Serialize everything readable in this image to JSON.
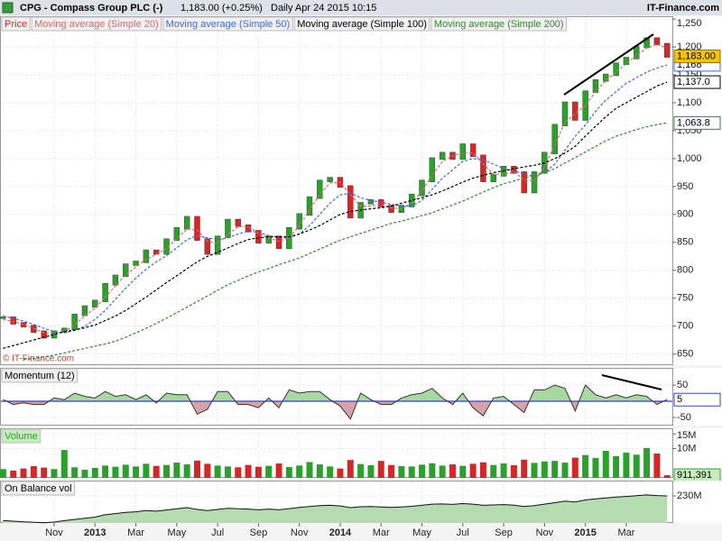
{
  "header": {
    "title": "CPG - Compass Group PLC (-)",
    "quote": "1,183.00 (+0.25%)",
    "period": "Daily  Apr 24 2015 10:15",
    "site": "IT-Finance.com",
    "watermark": "© IT-Finance.com"
  },
  "chart_data": [
    {
      "type": "line",
      "grid": true,
      "up_color": "#2ca02c",
      "down_color": "#d62728",
      "categories": [
        null,
        null,
        null,
        null,
        null,
        "Nov",
        null,
        null,
        null,
        "2013",
        null,
        null,
        null,
        "Mar",
        null,
        null,
        null,
        "May",
        null,
        null,
        null,
        "Jul",
        null,
        null,
        null,
        "Sep",
        null,
        null,
        null,
        "Nov",
        null,
        null,
        null,
        "2014",
        null,
        null,
        null,
        "Mar",
        null,
        null,
        null,
        "May",
        null,
        null,
        null,
        "Jul",
        null,
        null,
        null,
        "Sep",
        null,
        null,
        null,
        "Nov",
        null,
        null,
        null,
        "2015",
        null,
        null,
        null,
        "Mar",
        null,
        null,
        null,
        null
      ],
      "ylim": [
        630,
        1255
      ],
      "yticks": [
        650,
        700,
        750,
        800,
        850,
        900,
        950,
        {
          "value": 1000,
          "label": "1,000"
        },
        {
          "value": 1050,
          "label": "1,050"
        },
        {
          "value": 1100,
          "label": "1,100"
        },
        {
          "value": 1150,
          "label": "1,150"
        },
        {
          "value": 1200,
          "label": "1,200"
        },
        {
          "value": 1250,
          "label": "1,250"
        }
      ],
      "series": [
        {
          "name": "Price",
          "style": "candle",
          "color": "#d62728",
          "last_label": "1,183.00",
          "label_fill": "#f7c600",
          "label_stroke": "#8a6d00",
          "values": [
            715,
            705,
            700,
            690,
            680,
            690,
            695,
            720,
            735,
            745,
            775,
            790,
            810,
            815,
            835,
            830,
            855,
            875,
            895,
            855,
            830,
            860,
            890,
            880,
            870,
            850,
            860,
            840,
            875,
            900,
            930,
            960,
            965,
            950,
            895,
            920,
            925,
            915,
            905,
            915,
            935,
            960,
            1000,
            1010,
            1000,
            1025,
            1005,
            960,
            970,
            985,
            975,
            940,
            975,
            1010,
            1060,
            1100,
            1070,
            1120,
            1140,
            1150,
            1170,
            1180,
            1200,
            1215,
            1205,
            1183
          ]
        },
        {
          "name": "Moving average (Simple 20)",
          "style": "dashed",
          "color": "#e06666",
          "values": [
            712,
            708,
            703,
            696,
            688,
            686,
            690,
            702,
            718,
            732,
            752,
            772,
            792,
            806,
            820,
            828,
            840,
            856,
            874,
            872,
            852,
            848,
            864,
            878,
            878,
            866,
            858,
            852,
            858,
            880,
            908,
            936,
            956,
            958,
            935,
            915,
            915,
            918,
            912,
            910,
            920,
            942,
            970,
            995,
            1005,
            1010,
            1010,
            990,
            972,
            972,
            976,
            962,
            960,
            985,
            1025,
            1065,
            1080,
            1095,
            1120,
            1140,
            1155,
            1170,
            1185,
            1198,
            1205,
            1198
          ]
        },
        {
          "name": "Moving average (Simple 50)",
          "style": "dashed",
          "color": "#4169e1",
          "last_label": "1,168",
          "label_fill": "#ffffff",
          "label_stroke": "#4169e1",
          "values": [
            718,
            714,
            709,
            703,
            696,
            690,
            688,
            692,
            700,
            712,
            728,
            748,
            768,
            786,
            802,
            815,
            826,
            840,
            855,
            862,
            858,
            855,
            858,
            865,
            870,
            868,
            862,
            858,
            858,
            865,
            880,
            900,
            920,
            935,
            938,
            930,
            925,
            922,
            918,
            915,
            915,
            925,
            945,
            965,
            980,
            995,
            1000,
            998,
            990,
            982,
            978,
            972,
            968,
            975,
            990,
            1015,
            1040,
            1060,
            1085,
            1105,
            1120,
            1135,
            1145,
            1155,
            1162,
            1168
          ]
        },
        {
          "name": "Moving average (Simple 100)",
          "style": "dashed",
          "color": "#000000",
          "last_label": "1,137.0",
          "label_fill": "#ffffff",
          "label_stroke": "#000000",
          "values": [
            660,
            665,
            670,
            675,
            680,
            685,
            690,
            693,
            697,
            702,
            710,
            718,
            728,
            740,
            752,
            765,
            778,
            790,
            803,
            815,
            825,
            832,
            840,
            848,
            855,
            858,
            860,
            860,
            860,
            865,
            872,
            880,
            890,
            900,
            905,
            908,
            910,
            912,
            915,
            920,
            925,
            930,
            935,
            942,
            950,
            958,
            965,
            970,
            975,
            978,
            982,
            985,
            988,
            992,
            1000,
            1010,
            1022,
            1040,
            1058,
            1075,
            1090,
            1100,
            1110,
            1120,
            1130,
            1137.0
          ]
        },
        {
          "name": "Moving average (Simple 200)",
          "style": "dashed",
          "color": "#2e8b2e",
          "last_label": "1,063.8",
          "label_fill": "#ffffff",
          "label_stroke": "#2e8b2e",
          "values": [
            null,
            null,
            640,
            642,
            645,
            648,
            652,
            656,
            660,
            664,
            668,
            673,
            680,
            688,
            696,
            705,
            714,
            724,
            734,
            744,
            754,
            764,
            774,
            782,
            790,
            797,
            803,
            810,
            816,
            822,
            830,
            838,
            846,
            854,
            860,
            866,
            872,
            878,
            884,
            888,
            893,
            898,
            903,
            910,
            917,
            924,
            932,
            940,
            948,
            955,
            960,
            965,
            970,
            975,
            982,
            992,
            1002,
            1012,
            1022,
            1032,
            1040,
            1046,
            1052,
            1057,
            1061,
            1063.8
          ]
        }
      ]
    },
    {
      "type": "area",
      "baseline": 0,
      "ylim": [
        -75,
        103
      ],
      "yticks": [
        -50,
        50
      ],
      "zero_line_color": "#3344cc",
      "up_color": "#a9d8a0",
      "down_color": "#d6a3ab",
      "series": [
        {
          "name": "Momentum (12)",
          "color": "#333333",
          "show_last": true,
          "label_fill": "#ffffff",
          "label_stroke": "#3344cc",
          "values": [
            5,
            -10,
            -5,
            -10,
            -10,
            10,
            5,
            25,
            15,
            10,
            30,
            15,
            20,
            5,
            20,
            -5,
            25,
            20,
            20,
            -40,
            -25,
            30,
            30,
            -10,
            -10,
            -20,
            10,
            -20,
            35,
            25,
            30,
            30,
            5,
            -15,
            -55,
            25,
            5,
            -10,
            -10,
            10,
            20,
            25,
            40,
            10,
            -10,
            25,
            -20,
            -45,
            10,
            15,
            -10,
            -35,
            35,
            35,
            50,
            40,
            -30,
            50,
            20,
            10,
            20,
            10,
            20,
            15,
            -10,
            5
          ]
        }
      ]
    },
    {
      "type": "bar",
      "ylim": [
        0,
        16900000
      ],
      "yticks": [
        {
          "value": 10000000,
          "label": "10M"
        },
        {
          "value": 15000000,
          "label": "15M"
        }
      ],
      "series": [
        {
          "name": "Volume",
          "color": "#2ca02c",
          "last_label": "911,391",
          "label_fill": "#c8ecc0",
          "label_stroke": "#2ca02c",
          "values": [
            3000000,
            2500000,
            3200000,
            4000000,
            3500000,
            3000000,
            9500000,
            3600000,
            2800000,
            3400000,
            4200000,
            3800000,
            4500000,
            3900000,
            4800000,
            4100000,
            4400000,
            5200000,
            4600000,
            5900000,
            4800000,
            4200000,
            3900000,
            3600000,
            4400000,
            3800000,
            4100000,
            4900000,
            3700000,
            4200000,
            5400000,
            4600000,
            3900000,
            3200000,
            6100000,
            4700000,
            4300000,
            5800000,
            4400000,
            4000000,
            3900000,
            4500000,
            5000000,
            4200000,
            4600000,
            4100000,
            4800000,
            5300000,
            4400000,
            4900000,
            4300000,
            6200000,
            5100000,
            5600000,
            5800000,
            5200000,
            6900000,
            7800000,
            6800000,
            9200000,
            7400000,
            8600000,
            7900000,
            10200000,
            8300000,
            911391
          ]
        }
      ]
    },
    {
      "type": "area",
      "ylim": [
        0,
        360000000
      ],
      "yticks": [
        {
          "value": 230000000,
          "label": "230M"
        }
      ],
      "fill": "#b5dcb0",
      "series": [
        {
          "name": "On Balance vol",
          "color": "#111111",
          "values": [
            20000000,
            15000000,
            10000000,
            5000000,
            2000000,
            8000000,
            20000000,
            30000000,
            40000000,
            50000000,
            70000000,
            80000000,
            90000000,
            95000000,
            105000000,
            100000000,
            110000000,
            120000000,
            130000000,
            115000000,
            105000000,
            115000000,
            125000000,
            120000000,
            118000000,
            112000000,
            118000000,
            112000000,
            122000000,
            132000000,
            140000000,
            148000000,
            150000000,
            145000000,
            130000000,
            138000000,
            140000000,
            136000000,
            132000000,
            136000000,
            142000000,
            150000000,
            160000000,
            162000000,
            158000000,
            165000000,
            160000000,
            150000000,
            153000000,
            156000000,
            152000000,
            140000000,
            148000000,
            160000000,
            172000000,
            185000000,
            178000000,
            195000000,
            205000000,
            212000000,
            220000000,
            225000000,
            232000000,
            238000000,
            233000000,
            230000000
          ]
        }
      ]
    }
  ]
}
